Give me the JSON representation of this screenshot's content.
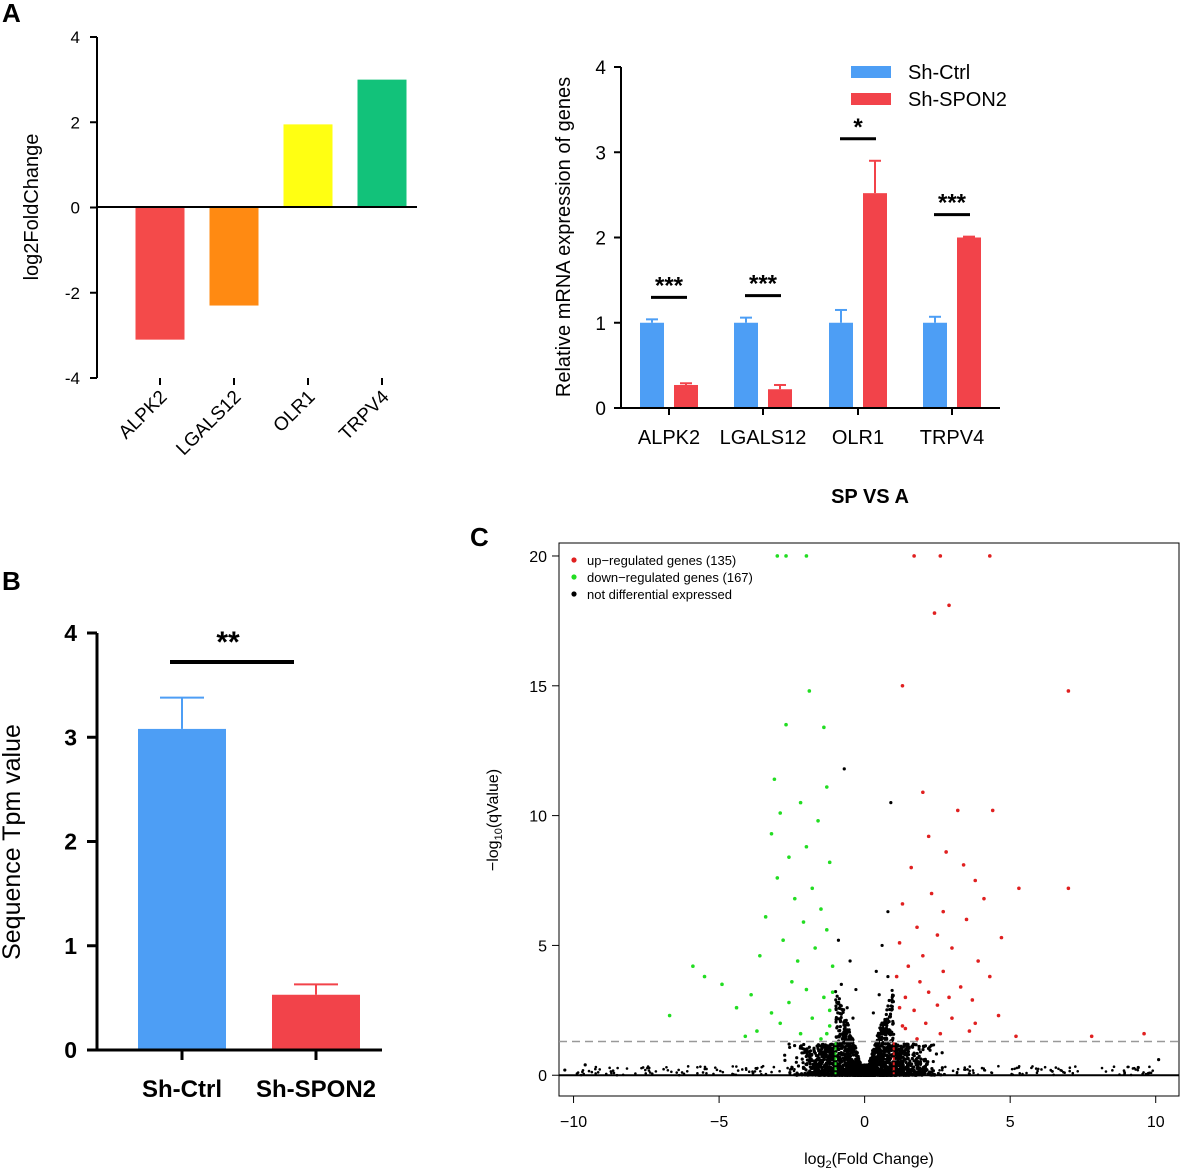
{
  "panels": {
    "A": "A",
    "B": "B",
    "C": "C"
  },
  "chart_data": [
    {
      "id": "A-left",
      "type": "bar",
      "ylabel": "log2FoldChange",
      "categories": [
        "ALPK2",
        "LGALS12",
        "OLR1",
        "TRPV4"
      ],
      "values": [
        -3.1,
        -2.3,
        1.95,
        3.0
      ],
      "colors": [
        "#f44a4a",
        "#ff8a12",
        "#ffff12",
        "#12c27a"
      ],
      "ylim": [
        -4,
        4
      ],
      "yticks": [
        4,
        2,
        0,
        -2,
        -4
      ]
    },
    {
      "id": "A-right",
      "type": "bar",
      "ylabel": "Relative mRNA expression of genes",
      "xlabel": "SP VS A",
      "categories": [
        "ALPK2",
        "LGALS12",
        "OLR1",
        "TRPV4"
      ],
      "series": [
        {
          "name": "Sh-Ctrl",
          "color": "#4d9ef5",
          "values": [
            1.0,
            1.0,
            1.0,
            1.0
          ],
          "errors": [
            0.04,
            0.06,
            0.15,
            0.07
          ]
        },
        {
          "name": "Sh-SPON2",
          "color": "#f2434a",
          "values": [
            0.27,
            0.22,
            2.52,
            2.0
          ],
          "errors": [
            0.02,
            0.05,
            0.38,
            0.01
          ]
        }
      ],
      "significance": [
        "***",
        "***",
        "*",
        "***"
      ],
      "ylim": [
        0,
        4
      ],
      "yticks": [
        0,
        1,
        2,
        3,
        4
      ]
    },
    {
      "id": "B",
      "type": "bar",
      "ylabel": "Sequence Tpm value",
      "categories": [
        "Sh-Ctrl",
        "Sh-SPON2"
      ],
      "values": [
        3.08,
        0.53
      ],
      "errors": [
        0.3,
        0.1
      ],
      "colors": [
        "#4d9ef5",
        "#f2434a"
      ],
      "significance": "**",
      "ylim": [
        0,
        4
      ],
      "yticks": [
        0,
        1,
        2,
        3,
        4
      ]
    },
    {
      "id": "C",
      "type": "scatter",
      "xlabel_main": "log",
      "xlabel_sub": "2",
      "xlabel_rest": "(Fold Change)",
      "ylabel_main": "−log",
      "ylabel_sub": "10",
      "ylabel_rest": "(qValue)",
      "xlim": [
        -10.5,
        10.8
      ],
      "ylim": [
        -0.8,
        20.5
      ],
      "xticks": [
        -10,
        -5,
        0,
        5,
        10
      ],
      "xtick_labels": [
        "−10",
        "−5",
        "0",
        "5",
        "10"
      ],
      "yticks": [
        0,
        5,
        10,
        15,
        20
      ],
      "fc_threshold": [
        -1,
        1
      ],
      "q_threshold": 1.3,
      "legend": [
        {
          "label": "up−regulated genes (135)",
          "color": "#e02020"
        },
        {
          "label": "down−regulated genes (167)",
          "color": "#22dd22"
        },
        {
          "label": "not differential expressed",
          "color": "#000000"
        }
      ],
      "up_points": [
        [
          1.7,
          20
        ],
        [
          2.6,
          20
        ],
        [
          4.3,
          20
        ],
        [
          2.9,
          18.1
        ],
        [
          2.4,
          17.8
        ],
        [
          1.3,
          15
        ],
        [
          7,
          14.8
        ],
        [
          2.0,
          10.9
        ],
        [
          3.2,
          10.2
        ],
        [
          4.4,
          10.2
        ],
        [
          2.2,
          9.2
        ],
        [
          2.8,
          8.6
        ],
        [
          3.4,
          8.1
        ],
        [
          1.6,
          8.0
        ],
        [
          3.8,
          7.5
        ],
        [
          5.3,
          7.2
        ],
        [
          7,
          7.2
        ],
        [
          2.3,
          7.0
        ],
        [
          4.1,
          6.8
        ],
        [
          1.3,
          6.6
        ],
        [
          2.7,
          6.3
        ],
        [
          3.5,
          6.0
        ],
        [
          1.8,
          5.7
        ],
        [
          2.5,
          5.4
        ],
        [
          4.7,
          5.3
        ],
        [
          1.2,
          5.1
        ],
        [
          3.0,
          4.9
        ],
        [
          2.0,
          4.6
        ],
        [
          3.9,
          4.4
        ],
        [
          1.5,
          4.2
        ],
        [
          2.7,
          4.0
        ],
        [
          4.3,
          3.8
        ],
        [
          1.9,
          3.6
        ],
        [
          3.3,
          3.4
        ],
        [
          2.2,
          3.2
        ],
        [
          1.4,
          3.0
        ],
        [
          3.7,
          2.9
        ],
        [
          2.5,
          2.7
        ],
        [
          1.7,
          2.5
        ],
        [
          4.6,
          2.3
        ],
        [
          3.0,
          2.2
        ],
        [
          2.1,
          2.0
        ],
        [
          1.3,
          1.9
        ],
        [
          3.6,
          1.7
        ],
        [
          2.6,
          1.6
        ],
        [
          5.2,
          1.5
        ],
        [
          1.8,
          1.4
        ],
        [
          7.8,
          1.5
        ],
        [
          9.6,
          1.6
        ],
        [
          1.1,
          3.8
        ],
        [
          1.2,
          2.6
        ],
        [
          1.4,
          1.8
        ],
        [
          2.9,
          3.0
        ],
        [
          3.8,
          2.0
        ]
      ],
      "down_points": [
        [
          -3,
          20
        ],
        [
          -2.7,
          20
        ],
        [
          -2,
          20
        ],
        [
          -1.9,
          14.8
        ],
        [
          -2.7,
          13.5
        ],
        [
          -1.4,
          13.4
        ],
        [
          -3.1,
          11.4
        ],
        [
          -1.3,
          11.1
        ],
        [
          -2.2,
          10.5
        ],
        [
          -2.9,
          10.1
        ],
        [
          -1.6,
          9.8
        ],
        [
          -3.2,
          9.3
        ],
        [
          -2.0,
          8.8
        ],
        [
          -2.6,
          8.4
        ],
        [
          -1.2,
          8.2
        ],
        [
          -3.0,
          7.6
        ],
        [
          -1.8,
          7.2
        ],
        [
          -2.4,
          6.8
        ],
        [
          -1.5,
          6.4
        ],
        [
          -3.4,
          6.1
        ],
        [
          -2.1,
          5.9
        ],
        [
          -1.3,
          5.6
        ],
        [
          -2.8,
          5.2
        ],
        [
          -1.7,
          4.9
        ],
        [
          -3.6,
          4.6
        ],
        [
          -2.3,
          4.4
        ],
        [
          -1.1,
          4.2
        ],
        [
          -5.9,
          4.2
        ],
        [
          -5.5,
          3.8
        ],
        [
          -4.9,
          3.5
        ],
        [
          -2.0,
          3.3
        ],
        [
          -3.9,
          3.1
        ],
        [
          -1.4,
          3.0
        ],
        [
          -2.6,
          2.8
        ],
        [
          -4.4,
          2.6
        ],
        [
          -3.2,
          2.4
        ],
        [
          -1.8,
          2.2
        ],
        [
          -6.7,
          2.3
        ],
        [
          -2.9,
          2.0
        ],
        [
          -1.2,
          1.9
        ],
        [
          -3.7,
          1.7
        ],
        [
          -2.2,
          1.6
        ],
        [
          -4.1,
          1.5
        ],
        [
          -1.5,
          1.4
        ],
        [
          -1.1,
          3.2
        ],
        [
          -1.2,
          2.5
        ],
        [
          -1.3,
          1.6
        ],
        [
          -2.5,
          3.6
        ]
      ],
      "ns_points": [
        [
          -0.7,
          11.8
        ],
        [
          0.9,
          10.5
        ],
        [
          0.8,
          6.3
        ],
        [
          -0.9,
          5.2
        ],
        [
          0.6,
          5.0
        ],
        [
          -0.5,
          4.4
        ],
        [
          0.4,
          4.0
        ],
        [
          -0.3,
          3.3
        ],
        [
          0.5,
          3.1
        ],
        [
          -0.8,
          3.5
        ],
        [
          0.8,
          3.8
        ],
        [
          -0.6,
          2.6
        ],
        [
          0.3,
          2.4
        ],
        [
          -0.4,
          2.2
        ],
        [
          0.7,
          2.1
        ],
        [
          -9.6,
          0.4
        ],
        [
          10.1,
          0.6
        ],
        [
          -10.3,
          0.2
        ],
        [
          9.4,
          0.3
        ]
      ]
    }
  ]
}
